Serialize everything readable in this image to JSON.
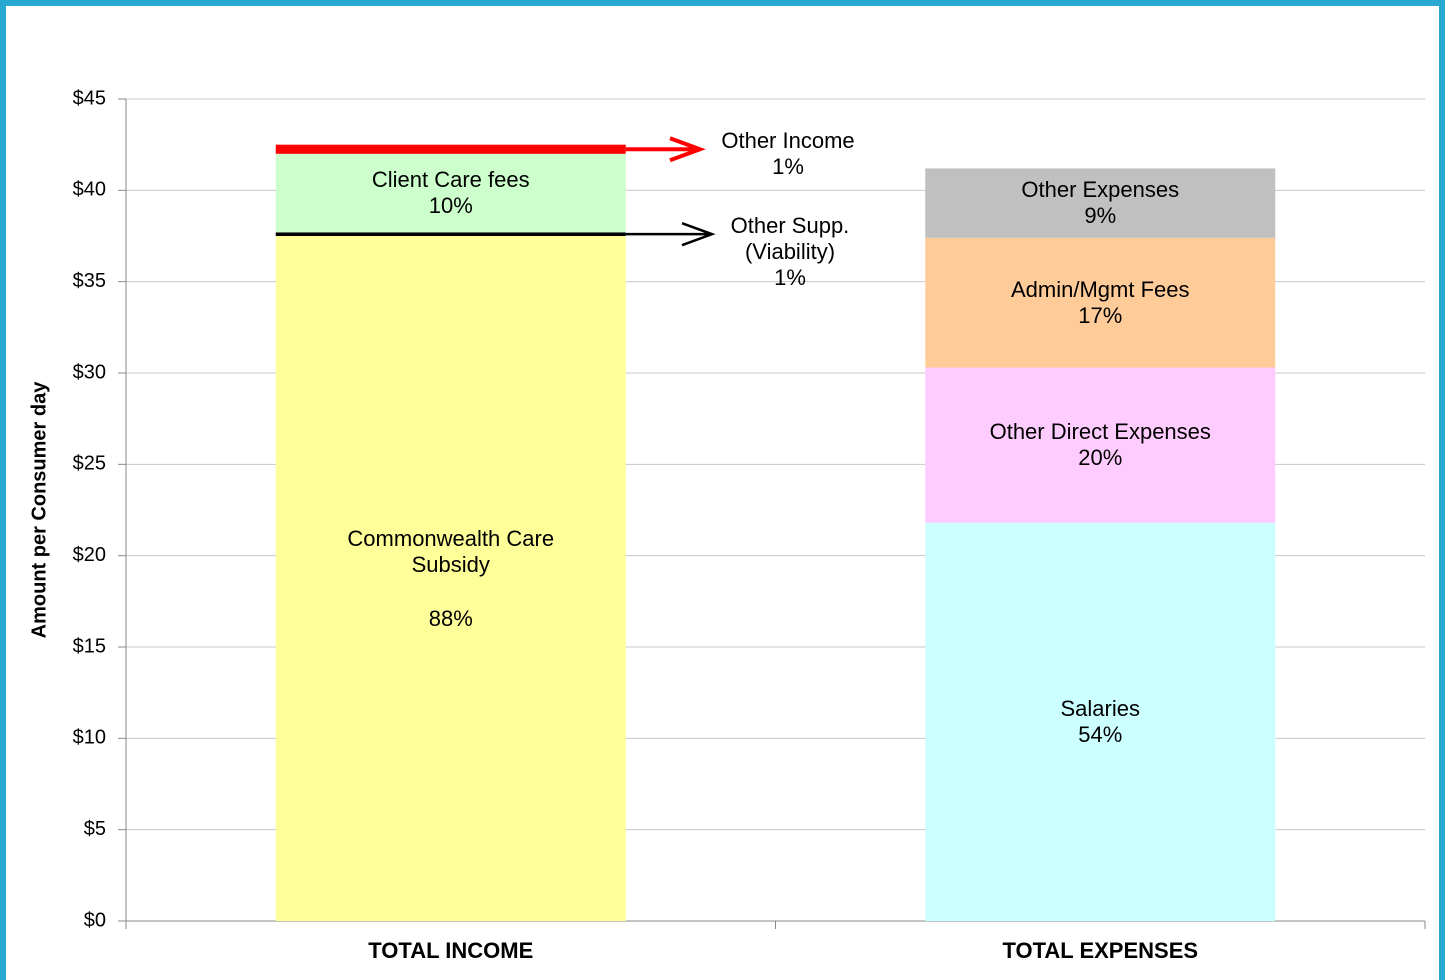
{
  "chart_data": {
    "type": "stacked_bar",
    "y_axis_title": "Amount per Consumer day",
    "categories": [
      "TOTAL INCOME",
      "TOTAL EXPENSES"
    ],
    "series": [
      {
        "name": "Commonwealth Care Subsidy",
        "color": "#ffff99",
        "values": [
          37.5,
          null
        ],
        "share_labels": [
          "88%",
          null
        ]
      },
      {
        "name": "Other Supp. (Viability)",
        "color": "#000000",
        "values": [
          0.2,
          null
        ],
        "share_labels": [
          "1%",
          null
        ]
      },
      {
        "name": "Client Care fees",
        "color": "#ccffcc",
        "values": [
          4.3,
          null
        ],
        "share_labels": [
          "10%",
          null
        ]
      },
      {
        "name": "Other Income",
        "color": "#ff0000",
        "values": [
          0.5,
          null
        ],
        "share_labels": [
          "1%",
          null
        ]
      },
      {
        "name": "Salaries",
        "color": "#ccffff",
        "values": [
          null,
          21.8
        ],
        "share_labels": [
          null,
          "54%"
        ]
      },
      {
        "name": "Other Direct Expenses",
        "color": "#ffccff",
        "values": [
          null,
          8.5
        ],
        "share_labels": [
          null,
          "20%"
        ]
      },
      {
        "name": "Admin/Mgmt Fees",
        "color": "#ffcc99",
        "values": [
          null,
          7.1
        ],
        "share_labels": [
          null,
          "17%"
        ]
      },
      {
        "name": "Other Expenses",
        "color": "#c0c0c0",
        "values": [
          null,
          3.8
        ],
        "share_labels": [
          null,
          "9%"
        ]
      }
    ],
    "ylim": [
      0,
      45
    ],
    "yticks": [
      {
        "value": 0,
        "label": "$0"
      },
      {
        "value": 5,
        "label": "$5"
      },
      {
        "value": 10,
        "label": "$10"
      },
      {
        "value": 15,
        "label": "$15"
      },
      {
        "value": 20,
        "label": "$20"
      },
      {
        "value": 25,
        "label": "$25"
      },
      {
        "value": 30,
        "label": "$30"
      },
      {
        "value": 35,
        "label": "$35"
      },
      {
        "value": 40,
        "label": "$40"
      },
      {
        "value": 45,
        "label": "$45"
      }
    ],
    "grid": true
  }
}
